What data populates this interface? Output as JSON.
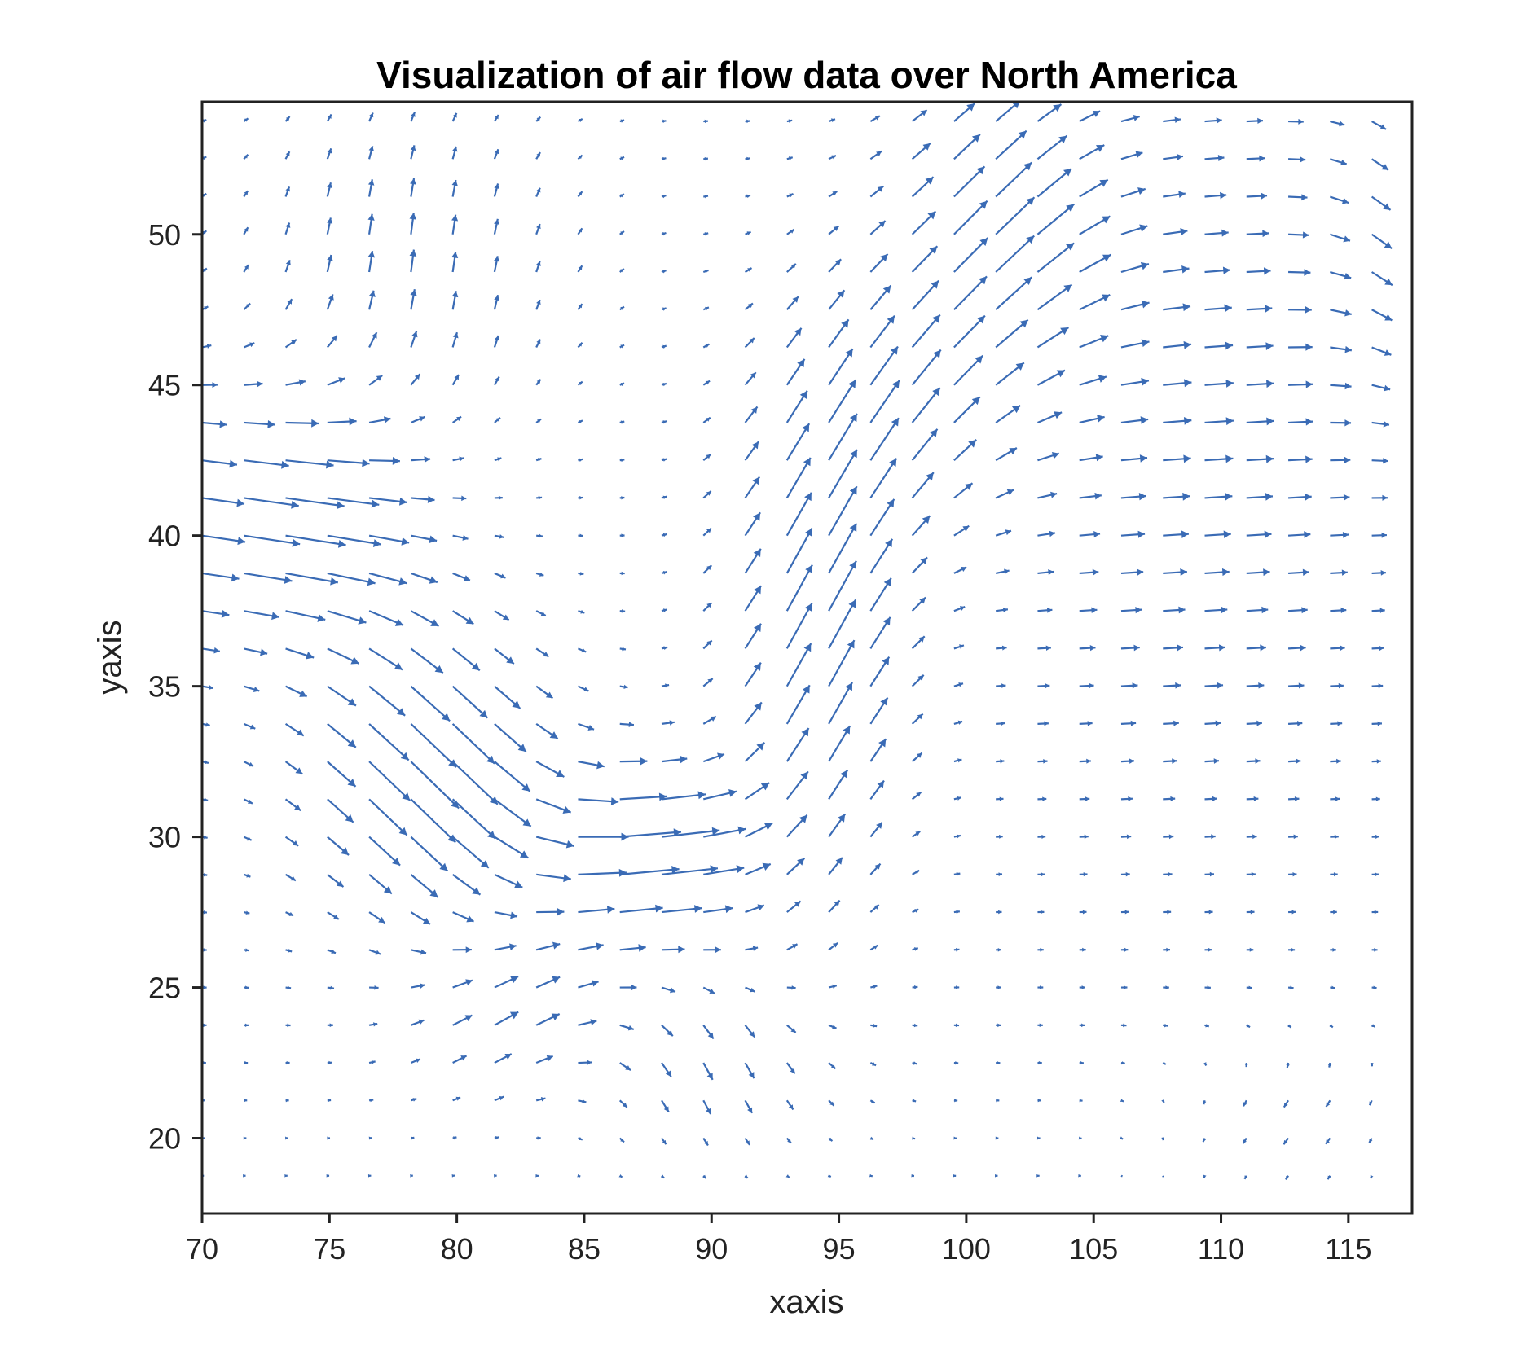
{
  "chart_data": {
    "type": "quiver",
    "title": "Visualization of air flow data over North America",
    "xlabel": "xaxis",
    "ylabel": "yaxis",
    "xlim": [
      70,
      117.5
    ],
    "ylim": [
      17.5,
      54.4
    ],
    "xticks": [
      70,
      75,
      80,
      85,
      90,
      95,
      100,
      105,
      110,
      115
    ],
    "yticks": [
      20,
      25,
      30,
      35,
      40,
      45,
      50
    ],
    "grid": false,
    "arrow_color": "#3a6bb5",
    "frame_color": "#222222",
    "grid_spec": {
      "x_start": 70,
      "x_step": 1.64,
      "x_count": 30,
      "y_start": 17.5,
      "y_step": 1.25,
      "y_count": 30
    },
    "flow_field_description_values": {
      "westerly_inflow_region": {
        "x_range": [
          70,
          80
        ],
        "y_range": [
          36,
          44
        ],
        "direction": "eastward-southeast"
      },
      "southeast_jet_region": {
        "x_range": [
          72,
          84
        ],
        "y_range": [
          28,
          38
        ],
        "direction": "southeast"
      },
      "eastward_jet_region": {
        "x_range": [
          83,
          92
        ],
        "y_range": [
          26,
          33
        ],
        "direction": "east"
      },
      "northeast_jet_region": {
        "x_range": [
          90,
          106
        ],
        "y_range": [
          30,
          54
        ],
        "direction": "northeast"
      },
      "eastern_outflow_region": {
        "x_range": [
          105,
          117.5
        ],
        "y_range": [
          30,
          54
        ],
        "direction": "east"
      }
    }
  }
}
